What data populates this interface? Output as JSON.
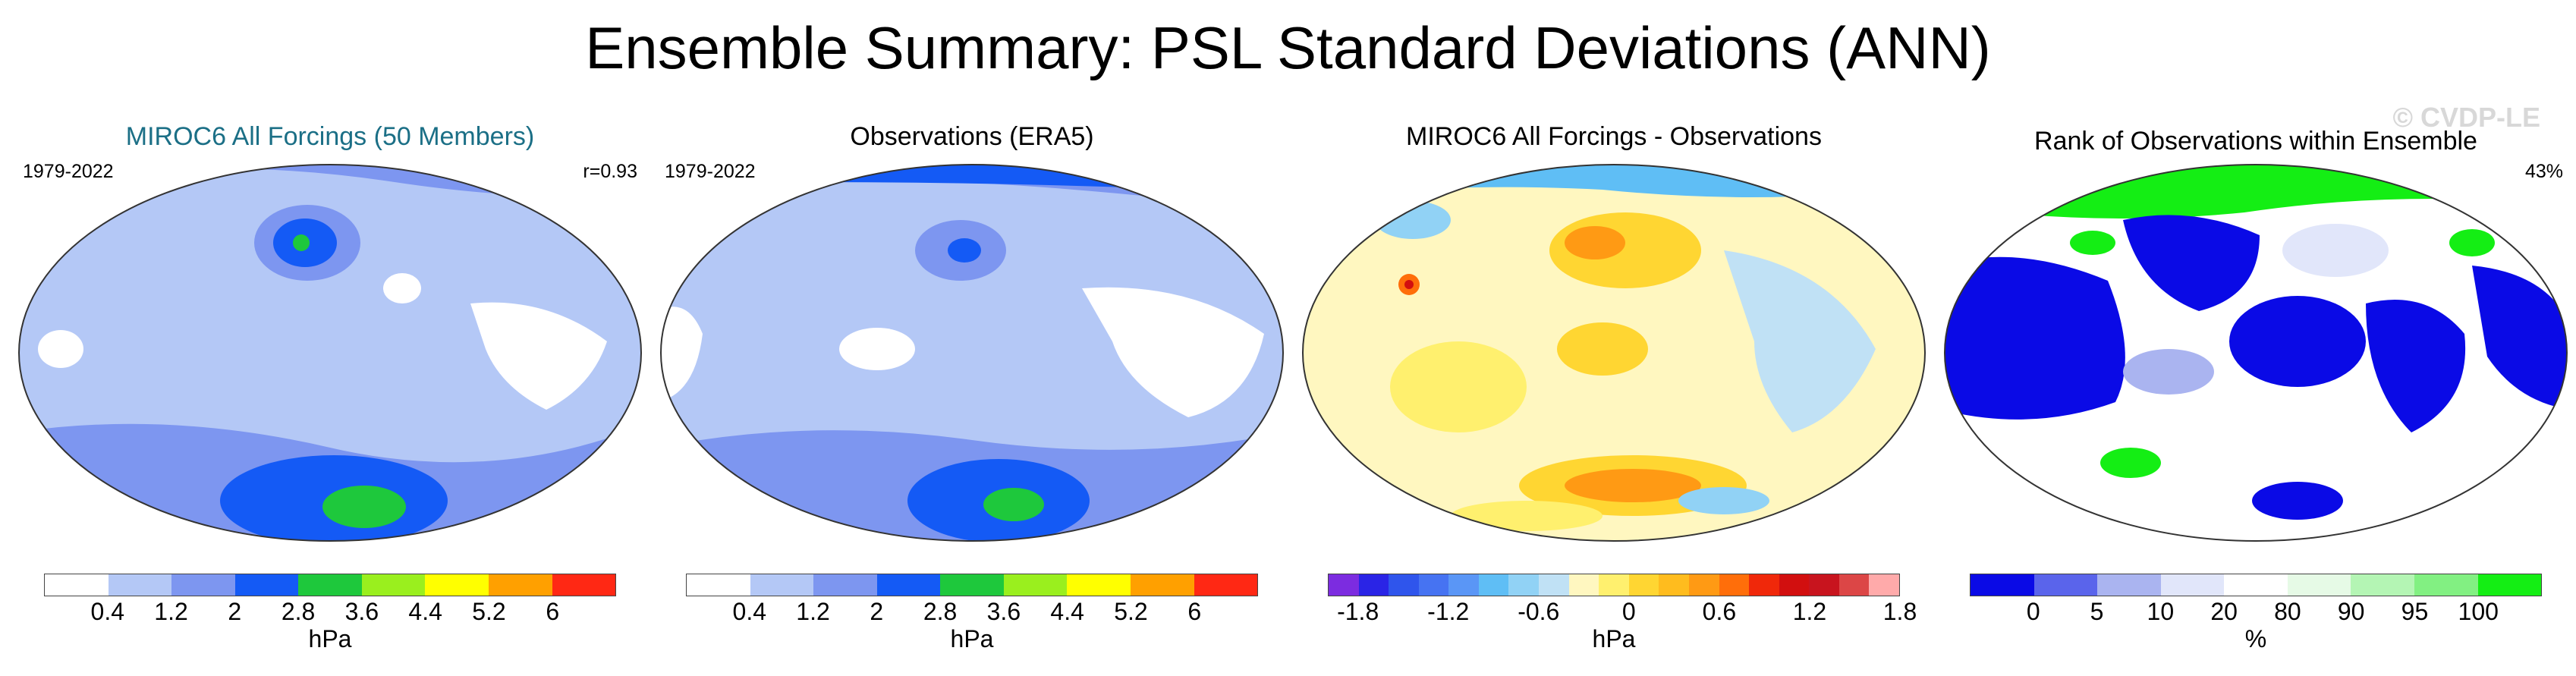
{
  "chart_data": [
    {
      "type": "heatmap",
      "title": "MIROC6 All Forcings (50 Members)",
      "period": "1979-2022",
      "annotation": "r=0.93",
      "units": "hPa",
      "colorbar_ticks": [
        "0.4",
        "1.2",
        "2",
        "2.8",
        "3.6",
        "4.4",
        "5.2",
        "6"
      ],
      "colors": [
        "#ffffff",
        "#b4c8f6",
        "#7d96f0",
        "#145af5",
        "#1ec83c",
        "#9aef1e",
        "#ffff00",
        "#ffa000",
        "#ff2814"
      ],
      "title_color": "#1b6f86"
    },
    {
      "type": "heatmap",
      "title": "Observations (ERA5)",
      "period": "1979-2022",
      "units": "hPa",
      "colorbar_ticks": [
        "0.4",
        "1.2",
        "2",
        "2.8",
        "3.6",
        "4.4",
        "5.2",
        "6"
      ],
      "colors": [
        "#ffffff",
        "#b4c8f6",
        "#7d96f0",
        "#145af5",
        "#1ec83c",
        "#9aef1e",
        "#ffff00",
        "#ffa000",
        "#ff2814"
      ]
    },
    {
      "type": "heatmap",
      "title": "MIROC6 All Forcings - Observations",
      "units": "hPa",
      "colorbar_ticks": [
        "-1.8",
        "-1.2",
        "-0.6",
        "0",
        "0.6",
        "1.2",
        "1.8"
      ],
      "colors": [
        "#7c2ce0",
        "#2a24e6",
        "#2f55ec",
        "#4673f2",
        "#5a96f6",
        "#5fbef5",
        "#91d2f5",
        "#c0e1f5",
        "#fff7c0",
        "#fff06e",
        "#ffd632",
        "#ffbc1e",
        "#ff9a14",
        "#ff6e0a",
        "#f0280a",
        "#d20f0f",
        "#c8141e",
        "#dc4646",
        "#ffaaaa"
      ]
    },
    {
      "type": "heatmap",
      "title": "Rank of Observations within Ensemble",
      "annotation": "43%",
      "units": "%",
      "colorbar_ticks": [
        "0",
        "5",
        "10",
        "20",
        "80",
        "90",
        "95",
        "100"
      ],
      "colors": [
        "#0a0ae6",
        "#5a64eb",
        "#aab4f0",
        "#e1e6fa",
        "#ffffff",
        "#e6fae6",
        "#b4f5b4",
        "#82f082",
        "#14ee14"
      ]
    }
  ],
  "header": {
    "title": "Ensemble Summary: PSL Standard Deviations (ANN)"
  },
  "watermark": "© CVDP-LE"
}
